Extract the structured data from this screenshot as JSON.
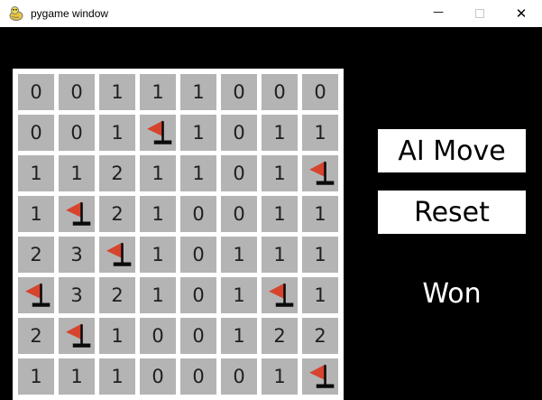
{
  "window": {
    "title": "pygame window",
    "icon": "pygame-logo",
    "controls": {
      "minimize_glyph": "—",
      "close_glyph": "✕"
    }
  },
  "board": {
    "grid_size": "8x8",
    "flag_symbol": "F",
    "rows": [
      [
        "0",
        "0",
        "1",
        "1",
        "1",
        "0",
        "0",
        "0"
      ],
      [
        "0",
        "0",
        "1",
        "F",
        "1",
        "0",
        "1",
        "1"
      ],
      [
        "1",
        "1",
        "2",
        "1",
        "1",
        "0",
        "1",
        "F"
      ],
      [
        "1",
        "F",
        "2",
        "1",
        "0",
        "0",
        "1",
        "1"
      ],
      [
        "2",
        "3",
        "F",
        "1",
        "0",
        "1",
        "1",
        "1"
      ],
      [
        "F",
        "3",
        "2",
        "1",
        "0",
        "1",
        "F",
        "1"
      ],
      [
        "2",
        "F",
        "1",
        "0",
        "0",
        "1",
        "2",
        "2"
      ],
      [
        "1",
        "1",
        "1",
        "0",
        "0",
        "0",
        "1",
        "F"
      ]
    ]
  },
  "panel": {
    "ai_move_label": "AI Move",
    "reset_label": "Reset",
    "status": "Won"
  },
  "colors": {
    "titlebar_bg": "#ffffff",
    "client_bg": "#000000",
    "board_bg": "#ffffff",
    "cell_bg": "#b4b4b4",
    "cell_text": "#1f1f1f",
    "flag_red": "#d6442e",
    "button_bg": "#ffffff",
    "button_text": "#000000",
    "status_text": "#ffffff"
  }
}
